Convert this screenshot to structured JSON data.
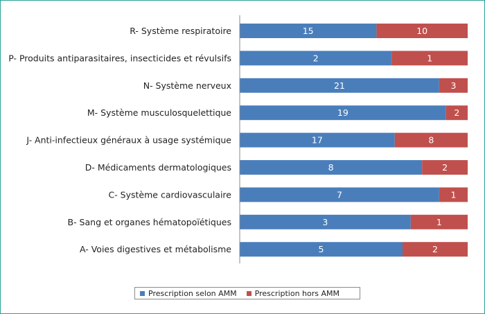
{
  "chart_data": {
    "type": "bar",
    "orientation": "horizontal",
    "stacked": "percent",
    "categories": [
      "R- Système respiratoire",
      "P- Produits antiparasitaires, insecticides  et révulsifs",
      "N- Système nerveux",
      "M- Système musculosquelettique",
      "J- Anti-infectieux généraux à usage  systémique",
      "D- Médicaments dermatologiques",
      "C- Système cardiovasculaire",
      "B- Sang et organes hématopoïétiques",
      "A- Voies digestives et métabolisme"
    ],
    "series": [
      {
        "name": "Prescription selon AMM",
        "color": "#4a7ebb",
        "values": [
          15,
          2,
          21,
          19,
          17,
          8,
          7,
          3,
          5
        ]
      },
      {
        "name": "Prescription hors AMM",
        "color": "#c0504d",
        "values": [
          10,
          1,
          3,
          2,
          8,
          2,
          1,
          1,
          2
        ]
      }
    ],
    "grid": false,
    "legend_position": "bottom"
  }
}
